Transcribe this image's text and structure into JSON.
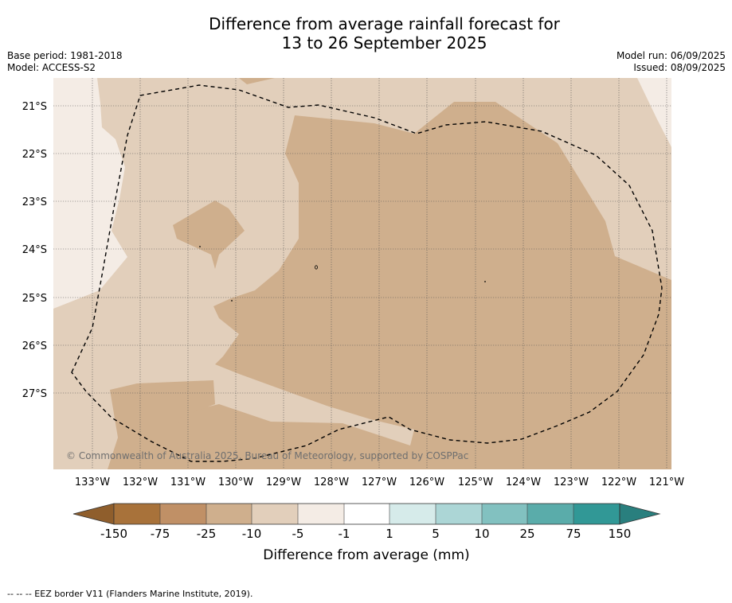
{
  "title_line1": "Difference from average rainfall forecast for",
  "title_line2": "13 to 26 September 2025",
  "base_period": "Base period: 1981-2018",
  "model": "Model: ACCESS-S2",
  "model_run": "Model run: 06/09/2025",
  "issued": "Issued: 08/09/2025",
  "copyright": "© Commonwealth of Australia 2025, Bureau of Meteorology, supported by COSPPac",
  "lat_labels": [
    "21°S",
    "22°S",
    "23°S",
    "24°S",
    "25°S",
    "26°S",
    "27°S"
  ],
  "lon_labels": [
    "133°W",
    "132°W",
    "131°W",
    "130°W",
    "129°W",
    "128°W",
    "127°W",
    "126°W",
    "125°W",
    "124°W",
    "123°W",
    "122°W",
    "121°W"
  ],
  "colorbar": {
    "title": "Difference from average (mm)",
    "ticks": [
      "-150",
      "-75",
      "-25",
      "-10",
      "-5",
      "-1",
      "1",
      "5",
      "10",
      "25",
      "75",
      "150"
    ],
    "colors": [
      "#a8723a",
      "#c09066",
      "#cfaf8d",
      "#e2cfbb",
      "#f4ece5",
      "#ffffff",
      "#d6ebea",
      "#acd6d6",
      "#82c1c0",
      "#5aacaa",
      "#319896"
    ],
    "under_color": "#8f5e2c",
    "over_color": "#297f7e"
  },
  "legend_note": "--  --  -- EEZ border V11 (Flanders Marine Institute, 2019).",
  "map_colors": {
    "light": "#f4ece5",
    "medium": "#e2cfbb",
    "dark": "#cfaf8d"
  }
}
